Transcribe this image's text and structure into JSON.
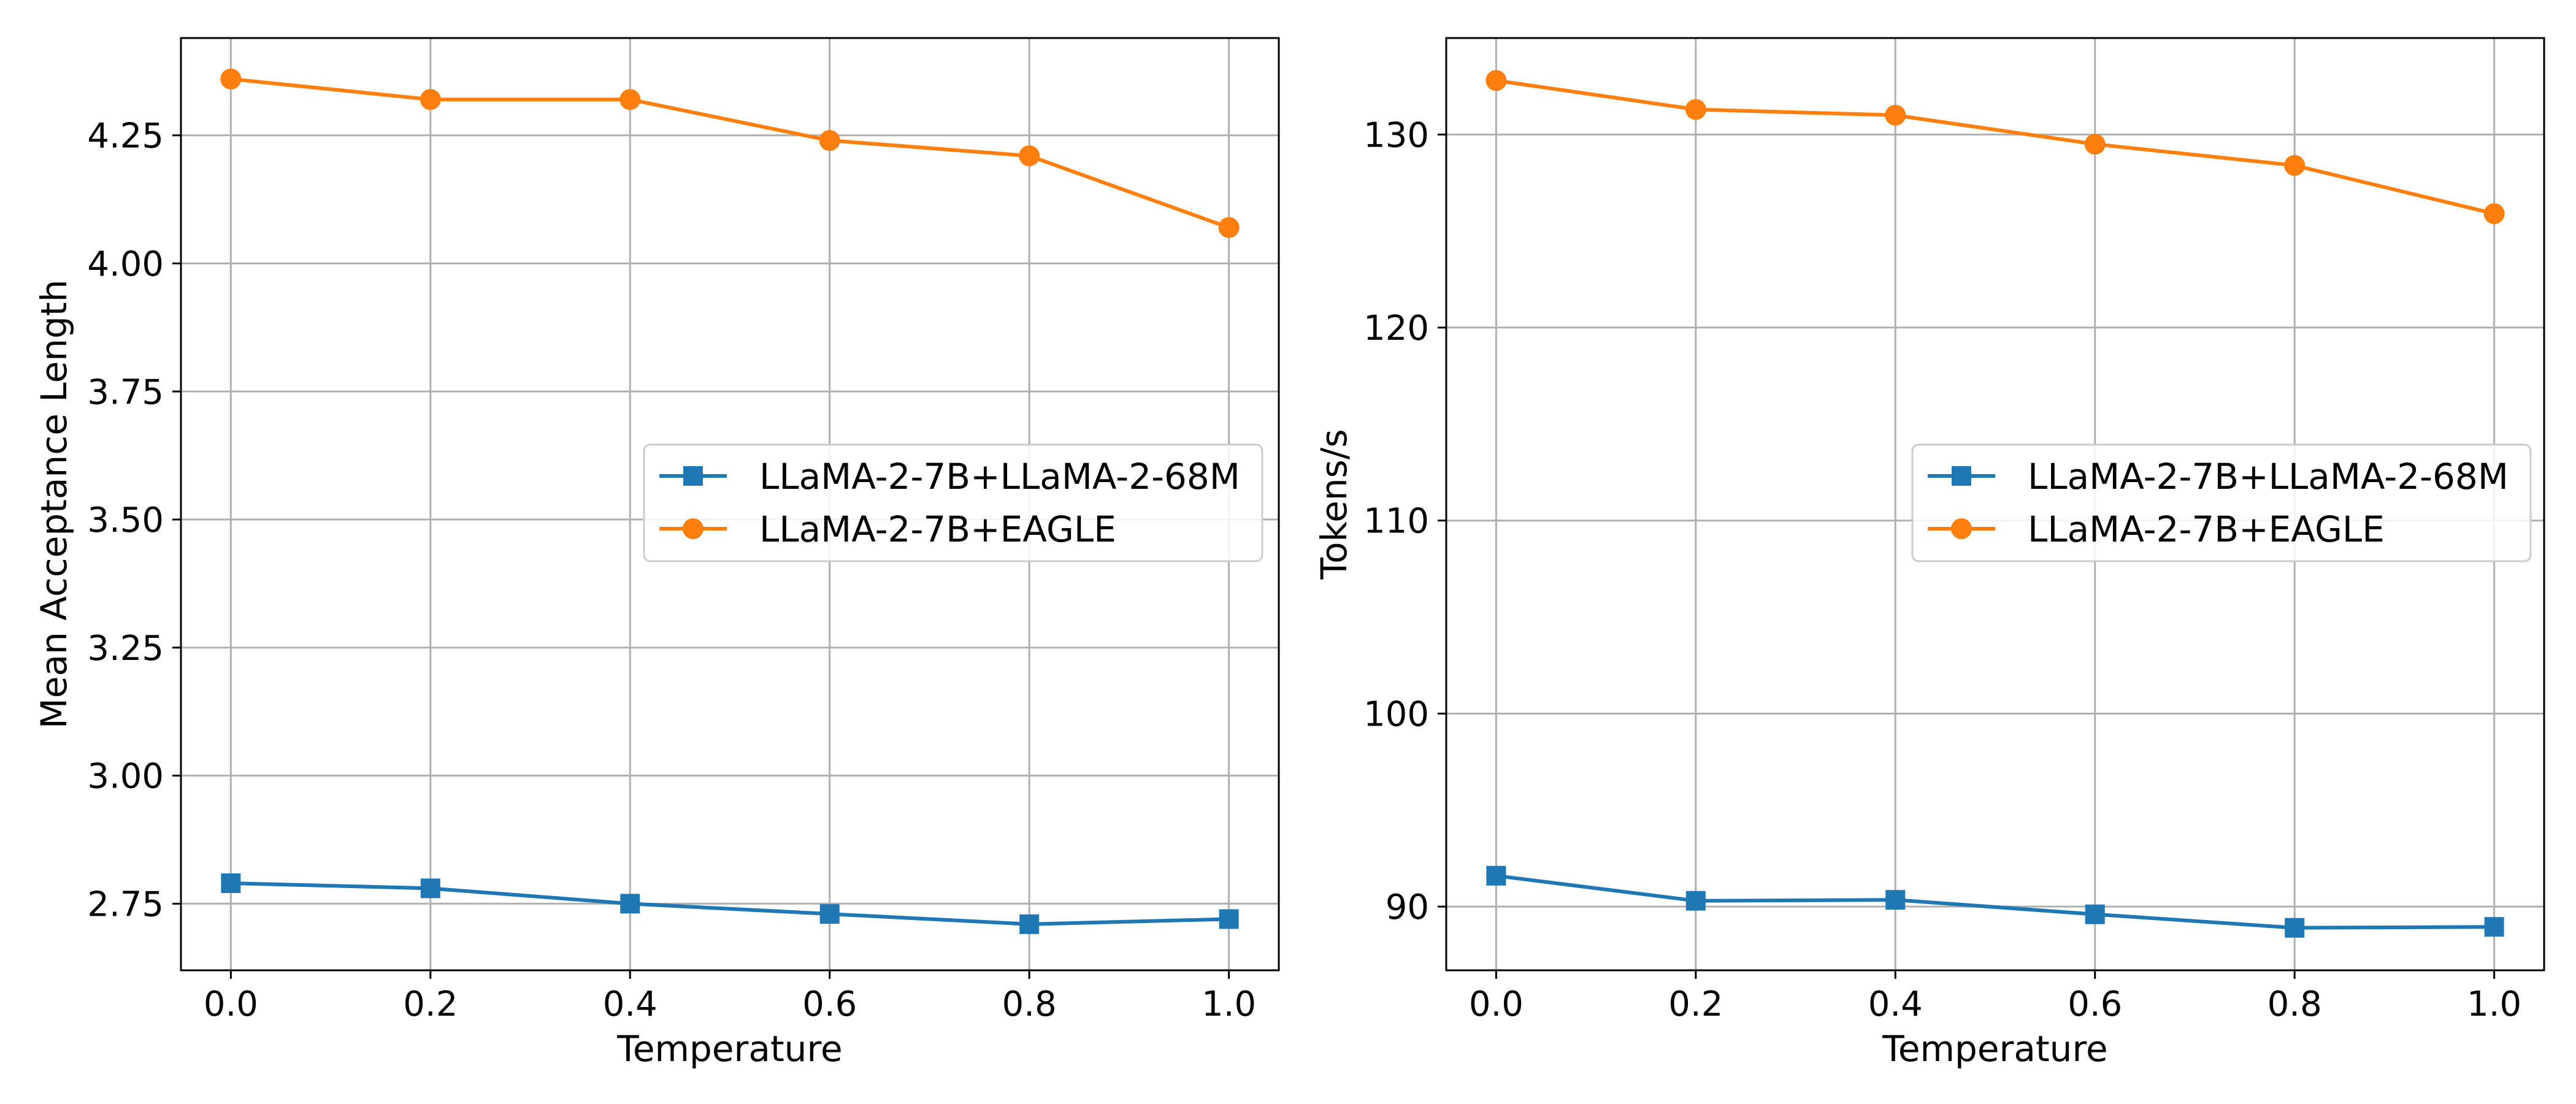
{
  "chart_data": [
    {
      "type": "line",
      "title": "",
      "xlabel": "Temperature",
      "ylabel": "Mean Acceptance Length",
      "x": [
        0.0,
        0.2,
        0.4,
        0.6,
        0.8,
        1.0
      ],
      "xlim": [
        -0.05,
        1.05
      ],
      "ylim": [
        2.62,
        4.44
      ],
      "xticks": [
        0.0,
        0.2,
        0.4,
        0.6,
        0.8,
        1.0
      ],
      "xtick_labels": [
        "0.0",
        "0.2",
        "0.4",
        "0.6",
        "0.8",
        "1.0"
      ],
      "yticks": [
        2.75,
        3.0,
        3.25,
        3.5,
        3.75,
        4.0,
        4.25
      ],
      "ytick_labels": [
        "2.75",
        "3.00",
        "3.25",
        "3.50",
        "3.75",
        "4.00",
        "4.25"
      ],
      "grid": true,
      "legend_position": "center-right",
      "series": [
        {
          "name": "LLaMA-2-7B+LLaMA-2-68M",
          "color": "#1f77b4",
          "marker": "square",
          "values": [
            2.79,
            2.78,
            2.75,
            2.73,
            2.71,
            2.72
          ]
        },
        {
          "name": "LLaMA-2-7B+EAGLE",
          "color": "#ff7f0e",
          "marker": "circle",
          "values": [
            4.36,
            4.32,
            4.32,
            4.24,
            4.21,
            4.07
          ]
        }
      ]
    },
    {
      "type": "line",
      "title": "",
      "xlabel": "Temperature",
      "ylabel": "Tokens/s",
      "x": [
        0.0,
        0.2,
        0.4,
        0.6,
        0.8,
        1.0
      ],
      "xlim": [
        -0.05,
        1.05
      ],
      "ylim": [
        86.7,
        135.0
      ],
      "xticks": [
        0.0,
        0.2,
        0.4,
        0.6,
        0.8,
        1.0
      ],
      "xtick_labels": [
        "0.0",
        "0.2",
        "0.4",
        "0.6",
        "0.8",
        "1.0"
      ],
      "yticks": [
        90,
        100,
        110,
        120,
        130
      ],
      "ytick_labels": [
        "90",
        "100",
        "110",
        "120",
        "130"
      ],
      "grid": true,
      "legend_position": "center-right",
      "series": [
        {
          "name": "LLaMA-2-7B+LLaMA-2-68M",
          "color": "#1f77b4",
          "marker": "square",
          "values": [
            91.6,
            90.3,
            90.35,
            89.6,
            88.9,
            88.95
          ]
        },
        {
          "name": "LLaMA-2-7B+EAGLE",
          "color": "#ff7f0e",
          "marker": "circle",
          "values": [
            132.8,
            131.3,
            131.0,
            129.5,
            128.4,
            125.9
          ]
        }
      ]
    }
  ]
}
